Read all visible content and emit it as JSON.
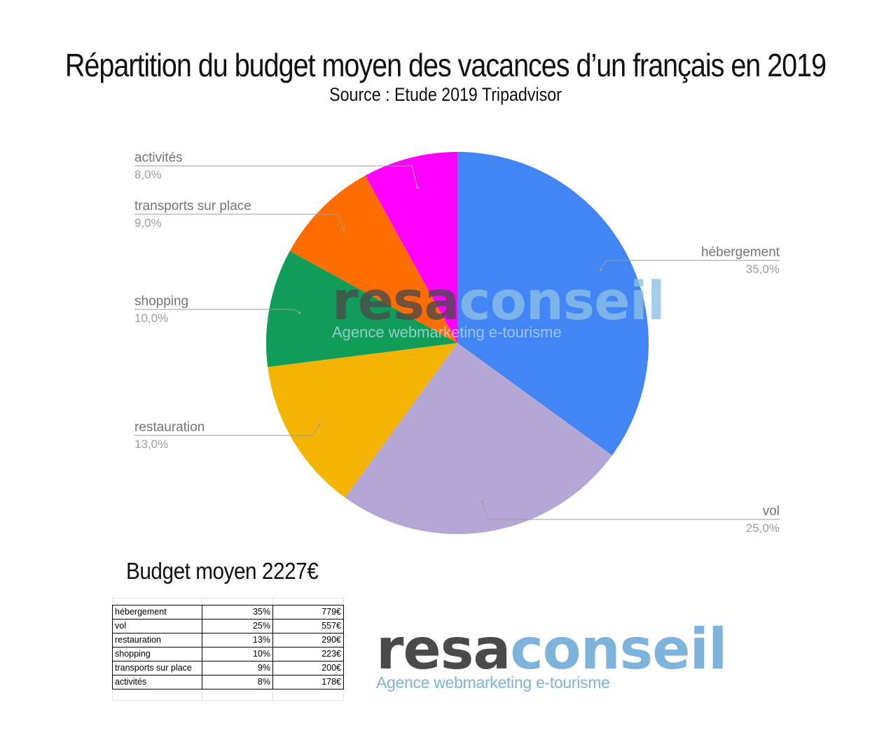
{
  "header": {
    "title": "Répartition du budget moyen des vacances d’un français en 2019",
    "subtitle": "Source : Etude 2019 Tripadvisor"
  },
  "chart_data": {
    "type": "pie",
    "categories": [
      "hébergement",
      "vol",
      "restauration",
      "shopping",
      "transports sur place",
      "activités"
    ],
    "values": [
      35.0,
      25.0,
      13.0,
      10.0,
      9.0,
      8.0
    ],
    "value_labels": [
      "35,0%",
      "25,0%",
      "13,0%",
      "10,0%",
      "9,0%",
      "8,0%"
    ],
    "colors": [
      "#4285f4",
      "#b4a7d6",
      "#f4b400",
      "#0f9d58",
      "#ff6d00",
      "#ff00ff"
    ],
    "title": "Répartition du budget moyen des vacances d’un français en 2019",
    "legend": "labels"
  },
  "budget": {
    "label": "Budget moyen 2227€",
    "rows": [
      {
        "category": "hébergement",
        "percent": "35%",
        "amount": "779€"
      },
      {
        "category": "vol",
        "percent": "25%",
        "amount": "557€"
      },
      {
        "category": "restauration",
        "percent": "13%",
        "amount": "290€"
      },
      {
        "category": "shopping",
        "percent": "10%",
        "amount": "223€"
      },
      {
        "category": "transports sur place",
        "percent": "9%",
        "amount": "200€"
      },
      {
        "category": "activités",
        "percent": "8%",
        "amount": "178€"
      }
    ]
  },
  "logo": {
    "brand_part1": "resa",
    "brand_part2": "conseil",
    "tagline": "Agence webmarketing  e-tourisme"
  }
}
